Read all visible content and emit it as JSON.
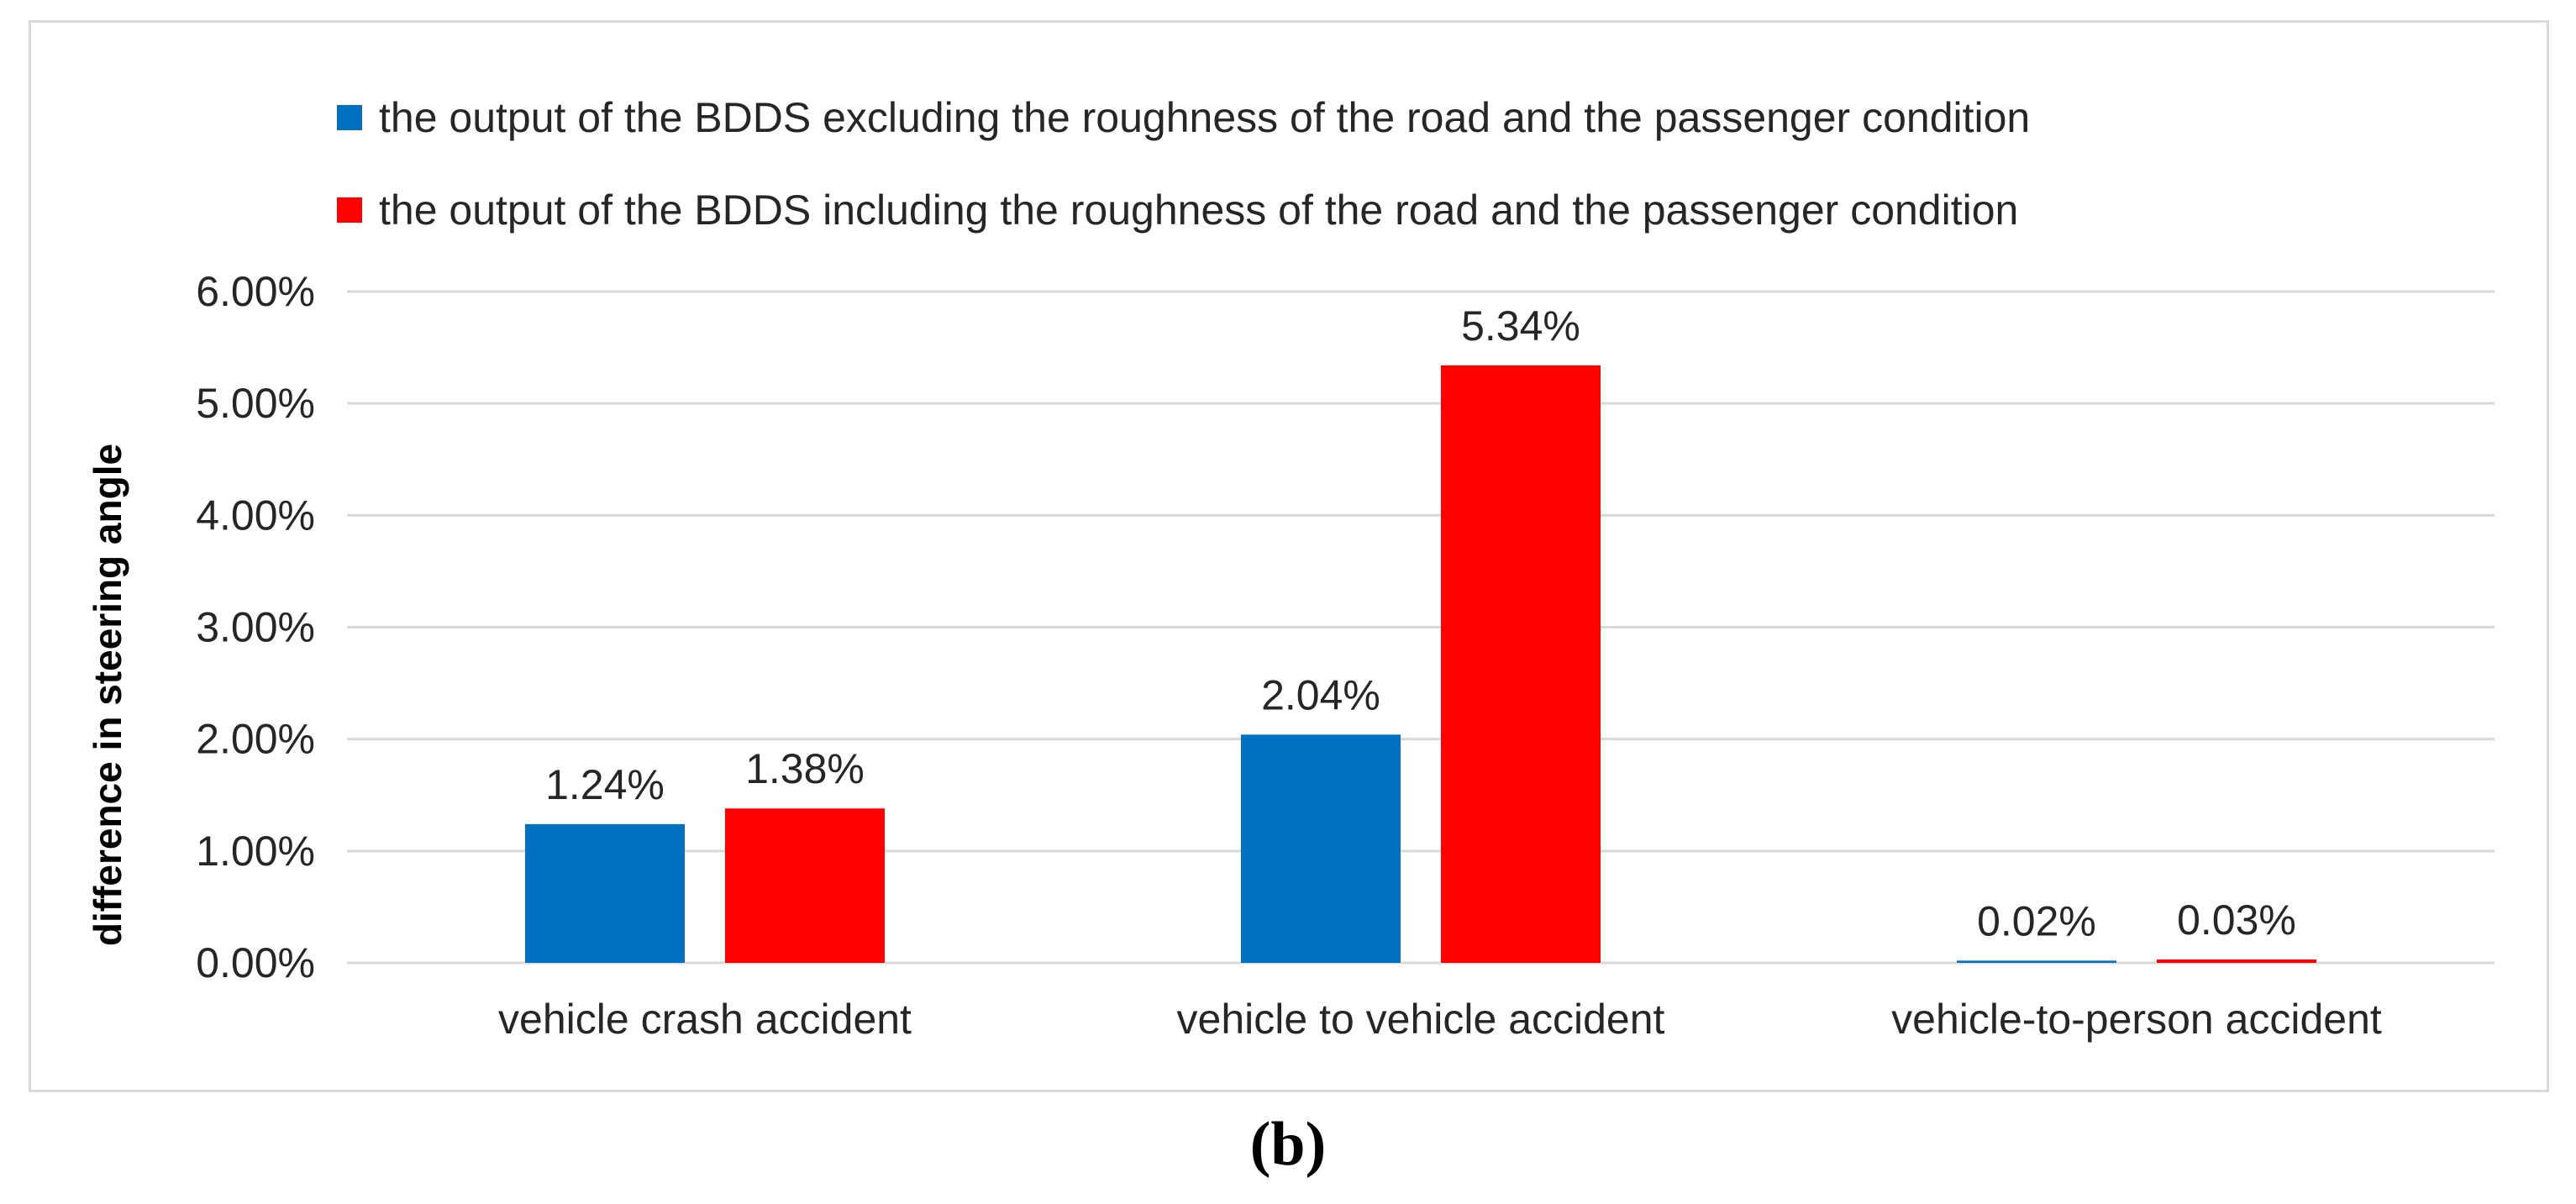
{
  "chart_data": {
    "type": "bar",
    "categories": [
      "vehicle crash accident",
      "vehicle to vehicle accident",
      "vehicle-to-person accident"
    ],
    "series": [
      {
        "name": "the output of the BDDS excluding the roughness of the road and the passenger condition",
        "color": "#0070c0",
        "values": [
          1.24,
          2.04,
          0.02
        ],
        "labels": [
          "1.24%",
          "2.04%",
          "0.02%"
        ]
      },
      {
        "name": "the output of the BDDS including the roughness of the road and the passenger condition",
        "color": "#ff0000",
        "values": [
          1.38,
          5.34,
          0.03
        ],
        "labels": [
          "1.38%",
          "5.34%",
          "0.03%"
        ]
      }
    ],
    "xlabel": "",
    "ylabel": "difference in steering angle",
    "ylim": [
      0,
      6
    ],
    "yticks": [
      0,
      1,
      2,
      3,
      4,
      5,
      6
    ],
    "ytick_labels": [
      "0.00%",
      "1.00%",
      "2.00%",
      "3.00%",
      "4.00%",
      "5.00%",
      "6.00%"
    ],
    "grid": true,
    "legend_position": "top"
  },
  "panel_label": "(b)"
}
